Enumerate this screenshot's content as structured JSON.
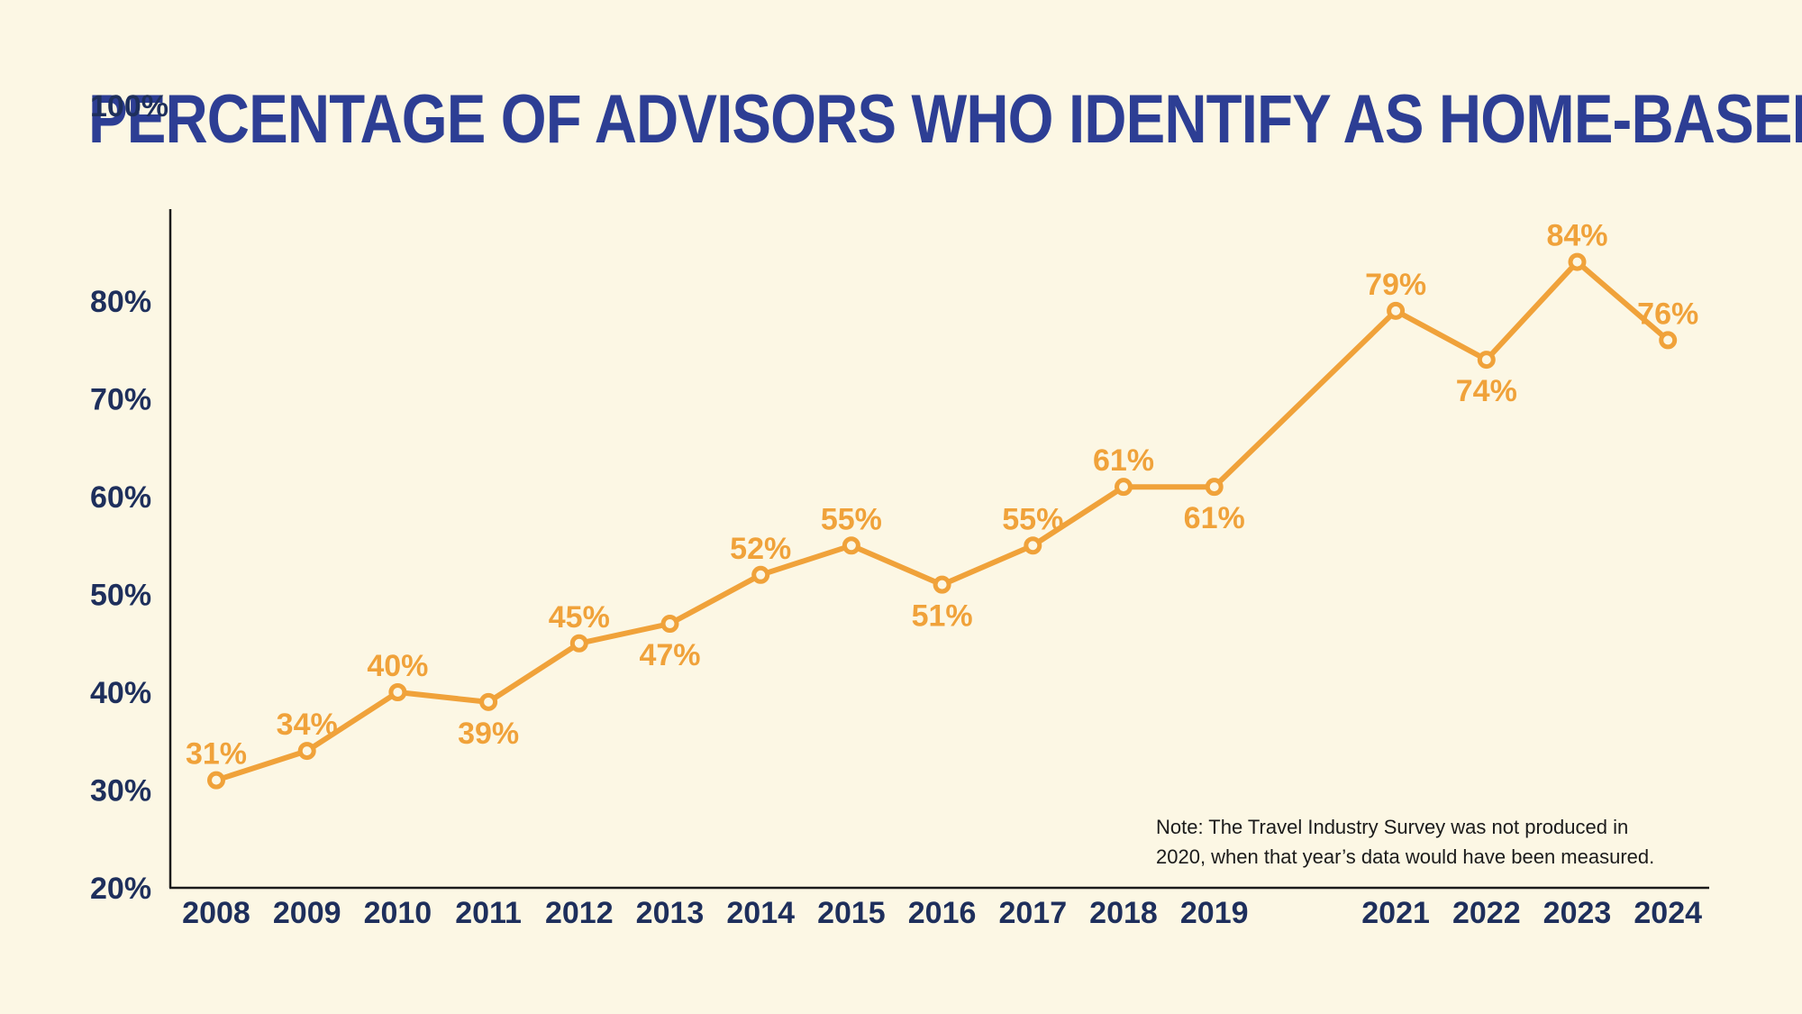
{
  "chart_data": {
    "type": "line",
    "title": "PERCENTAGE OF ADVISORS WHO IDENTIFY AS HOME-BASED",
    "xlabel": "",
    "ylabel": "",
    "x": [
      "2008",
      "2009",
      "2010",
      "2011",
      "2012",
      "2013",
      "2014",
      "2015",
      "2016",
      "2017",
      "2018",
      "2019",
      "2021",
      "2022",
      "2023",
      "2024"
    ],
    "x_numeric": [
      2008,
      2009,
      2010,
      2011,
      2012,
      2013,
      2014,
      2015,
      2016,
      2017,
      2018,
      2019,
      2021,
      2022,
      2023,
      2024
    ],
    "series": [
      {
        "values": [
          31,
          34,
          40,
          39,
          45,
          47,
          52,
          55,
          51,
          55,
          61,
          61,
          79,
          74,
          84,
          76
        ],
        "value_labels": [
          "31%",
          "34%",
          "40%",
          "39%",
          "45%",
          "47%",
          "52%",
          "55%",
          "51%",
          "55%",
          "61%",
          "61%",
          "79%",
          "74%",
          "84%",
          "76%"
        ],
        "label_positions": [
          "above",
          "above",
          "above",
          "below",
          "above",
          "below",
          "above",
          "above",
          "below",
          "above",
          "above",
          "below",
          "above",
          "below",
          "above",
          "above"
        ],
        "color": "#f0a23a"
      }
    ],
    "ylim": [
      20,
      100
    ],
    "y_ticks": [
      20,
      30,
      40,
      50,
      60,
      70,
      80,
      100
    ],
    "y_tick_labels": [
      "20%",
      "30%",
      "40%",
      "50%",
      "60%",
      "70%",
      "80%",
      "100%"
    ],
    "grid": false,
    "note": [
      "Note: The Travel Industry Survey was not produced in",
      "2020, when that year’s data would have been measured."
    ],
    "colors": {
      "title": "#2d3e94",
      "axis_labels": "#1e2f5c",
      "line": "#f0a23a",
      "background": "#fcf7e4",
      "axis": "#1b1b1b"
    }
  }
}
